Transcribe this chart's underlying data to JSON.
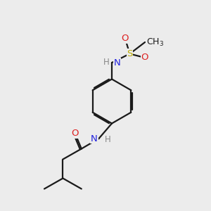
{
  "bg_color": "#ececec",
  "bond_color": "#1a1a1a",
  "bond_width": 1.6,
  "dbo": 0.07,
  "atom_colors": {
    "N": "#2222dd",
    "O": "#dd2222",
    "S": "#bbaa00",
    "C": "#1a1a1a",
    "H": "#888888"
  },
  "font_size": 9.5
}
